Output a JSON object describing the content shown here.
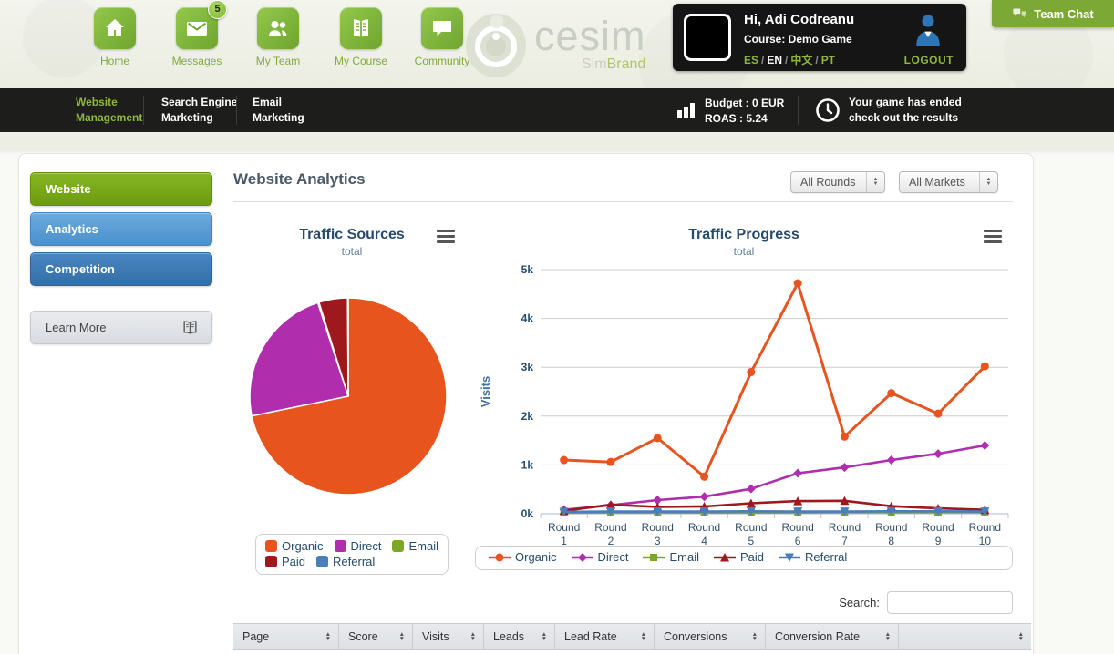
{
  "colors": {
    "accent_green": "#8fb73e",
    "dark_bar": "#1d1d1b",
    "chart_title": "#274b6d"
  },
  "header": {
    "nav": [
      {
        "id": "home",
        "icon": "home",
        "label": "Home"
      },
      {
        "id": "messages",
        "icon": "envelope",
        "label": "Messages",
        "badge": "5"
      },
      {
        "id": "my-team",
        "icon": "people",
        "label": "My Team"
      },
      {
        "id": "my-course",
        "icon": "book",
        "label": "My Course"
      },
      {
        "id": "community",
        "icon": "speech",
        "label": "Community"
      }
    ],
    "logo": {
      "brand": "cesim",
      "sub_grey": "Sim",
      "sub_green": "Brand"
    },
    "user": {
      "greeting": "Hi, Adi Codreanu",
      "course": "Course: Demo Game",
      "languages": [
        "ES",
        "EN",
        "中文",
        "PT"
      ],
      "active_language": "EN",
      "logout_label": "LOGOUT"
    },
    "team_chat_label": "Team Chat"
  },
  "subnav": {
    "items": [
      {
        "lines": [
          "Website",
          "Management"
        ],
        "active": true
      },
      {
        "lines": [
          "Search Engine",
          "Marketing"
        ],
        "active": false
      },
      {
        "lines": [
          "Email",
          "Marketing"
        ],
        "active": false
      }
    ],
    "budget_line1": "Budget : 0 EUR",
    "budget_line2": "ROAS : 5.24",
    "notice_line1": "Your game has ended",
    "notice_line2": "check out the results"
  },
  "sidebar": {
    "items": [
      {
        "label": "Website",
        "variant": "green"
      },
      {
        "label": "Analytics",
        "variant": "lightblue"
      },
      {
        "label": "Competition",
        "variant": "blue"
      }
    ],
    "learn_more_label": "Learn More"
  },
  "main": {
    "title": "Website Analytics",
    "filters": [
      {
        "value": "All Rounds"
      },
      {
        "value": "All Markets"
      }
    ],
    "search_label": "Search:",
    "search_value": "",
    "table_columns": [
      "Page",
      "Score",
      "Visits",
      "Leads",
      "Lead Rate",
      "Conversions",
      "Conversion Rate",
      ""
    ]
  },
  "chart_data": [
    {
      "type": "pie",
      "title": "Traffic Sources",
      "subtitle": "total",
      "legend_position": "bottom",
      "slices": [
        {
          "name": "Organic",
          "pct": 71.8,
          "color": "#E8541E"
        },
        {
          "name": "Direct",
          "pct": 23.2,
          "color": "#B02DAE"
        },
        {
          "name": "Email",
          "pct": 0.2,
          "color": "#7EA821"
        },
        {
          "name": "Paid",
          "pct": 4.7,
          "color": "#9E191E"
        },
        {
          "name": "Referral",
          "pct": 0.1,
          "color": "#4A7EBB"
        }
      ]
    },
    {
      "type": "line",
      "title": "Traffic Progress",
      "subtitle": "total",
      "ylabel": "Visits",
      "ylim": [
        0,
        5000
      ],
      "yticks": [
        "0k",
        "1k",
        "2k",
        "3k",
        "4k",
        "5k"
      ],
      "categories": [
        "Round 1",
        "Round 2",
        "Round 3",
        "Round 4",
        "Round 5",
        "Round 6",
        "Round 7",
        "Round 8",
        "Round 9",
        "Round 10"
      ],
      "grid": true,
      "legend_position": "bottom",
      "series": [
        {
          "name": "Organic",
          "marker": "circle",
          "color": "#E8541E",
          "values": [
            1100,
            1060,
            1550,
            760,
            2900,
            4720,
            1580,
            2470,
            2050,
            3020
          ]
        },
        {
          "name": "Direct",
          "marker": "diamond",
          "color": "#B02DAE",
          "values": [
            80,
            175,
            280,
            350,
            510,
            830,
            950,
            1100,
            1230,
            1400
          ]
        },
        {
          "name": "Email",
          "marker": "square",
          "color": "#7EA821",
          "values": [
            20,
            25,
            25,
            25,
            25,
            25,
            30,
            30,
            30,
            30
          ]
        },
        {
          "name": "Paid",
          "marker": "triangle",
          "color": "#9E191E",
          "values": [
            60,
            185,
            140,
            150,
            215,
            260,
            265,
            155,
            110,
            80
          ]
        },
        {
          "name": "Referral",
          "marker": "triangle-down",
          "color": "#4A7EBB",
          "values": [
            40,
            45,
            45,
            45,
            50,
            45,
            45,
            50,
            50,
            45
          ]
        }
      ]
    }
  ]
}
